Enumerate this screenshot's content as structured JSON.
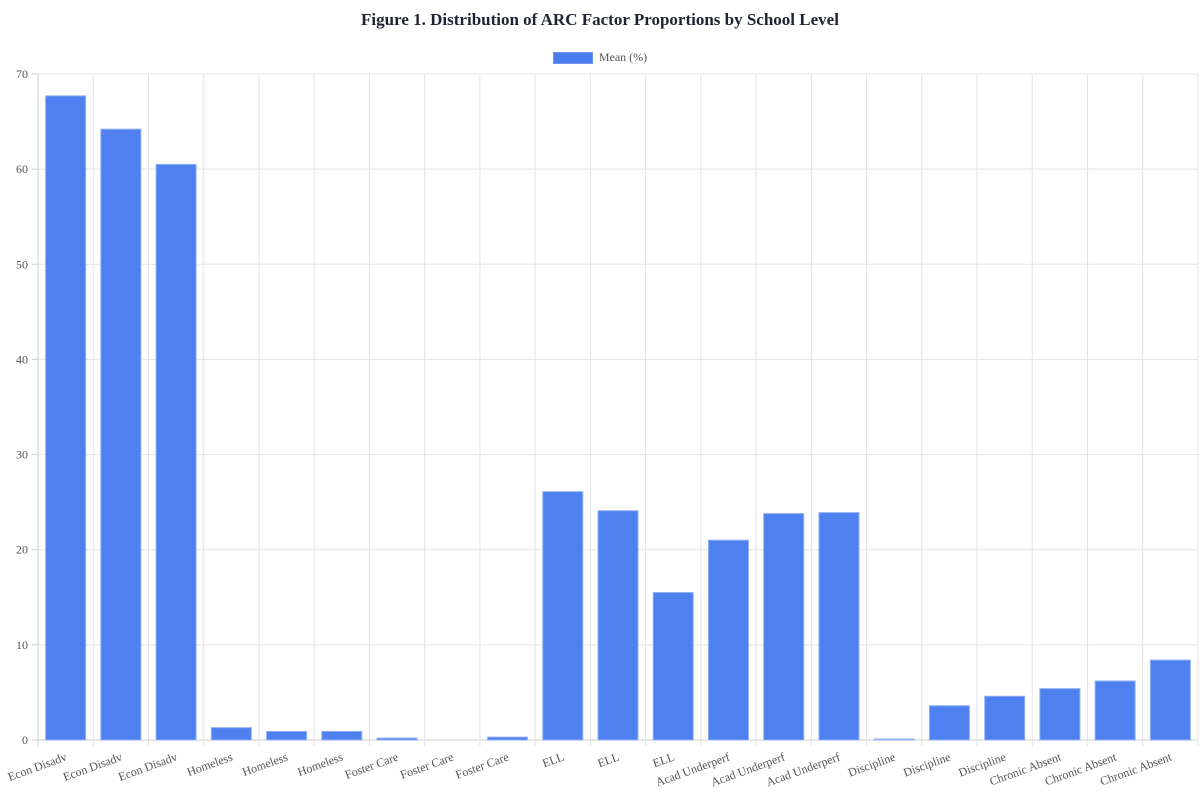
{
  "chart_data": {
    "type": "bar",
    "title": "Figure 1. Distribution of ARC Factor Proportions by School Level",
    "xlabel": "",
    "ylabel": "",
    "ylim": [
      0,
      70
    ],
    "yticks": [
      0,
      10,
      20,
      30,
      40,
      50,
      60,
      70
    ],
    "grid": true,
    "legend_position": "top-center",
    "categories": [
      "Econ Disadv",
      "Econ Disadv",
      "Econ Disadv",
      "Homeless",
      "Homeless",
      "Homeless",
      "Foster Care",
      "Foster Care",
      "Foster Care",
      "ELL",
      "ELL",
      "ELL",
      "Acad Underperf",
      "Acad Underperf",
      "Acad Underperf",
      "Discipline",
      "Discipline",
      "Discipline",
      "Chronic Absent",
      "Chronic Absent",
      "Chronic Absent"
    ],
    "series": [
      {
        "name": "Mean (%)",
        "color": "#4a7def",
        "values": [
          67.7,
          64.2,
          60.5,
          1.3,
          0.9,
          0.9,
          0.2,
          0.0,
          0.3,
          26.1,
          24.1,
          15.5,
          21.0,
          23.8,
          23.9,
          0.1,
          3.6,
          4.6,
          5.4,
          6.2,
          8.4
        ]
      }
    ]
  },
  "legend": {
    "label": "Mean (%)"
  }
}
